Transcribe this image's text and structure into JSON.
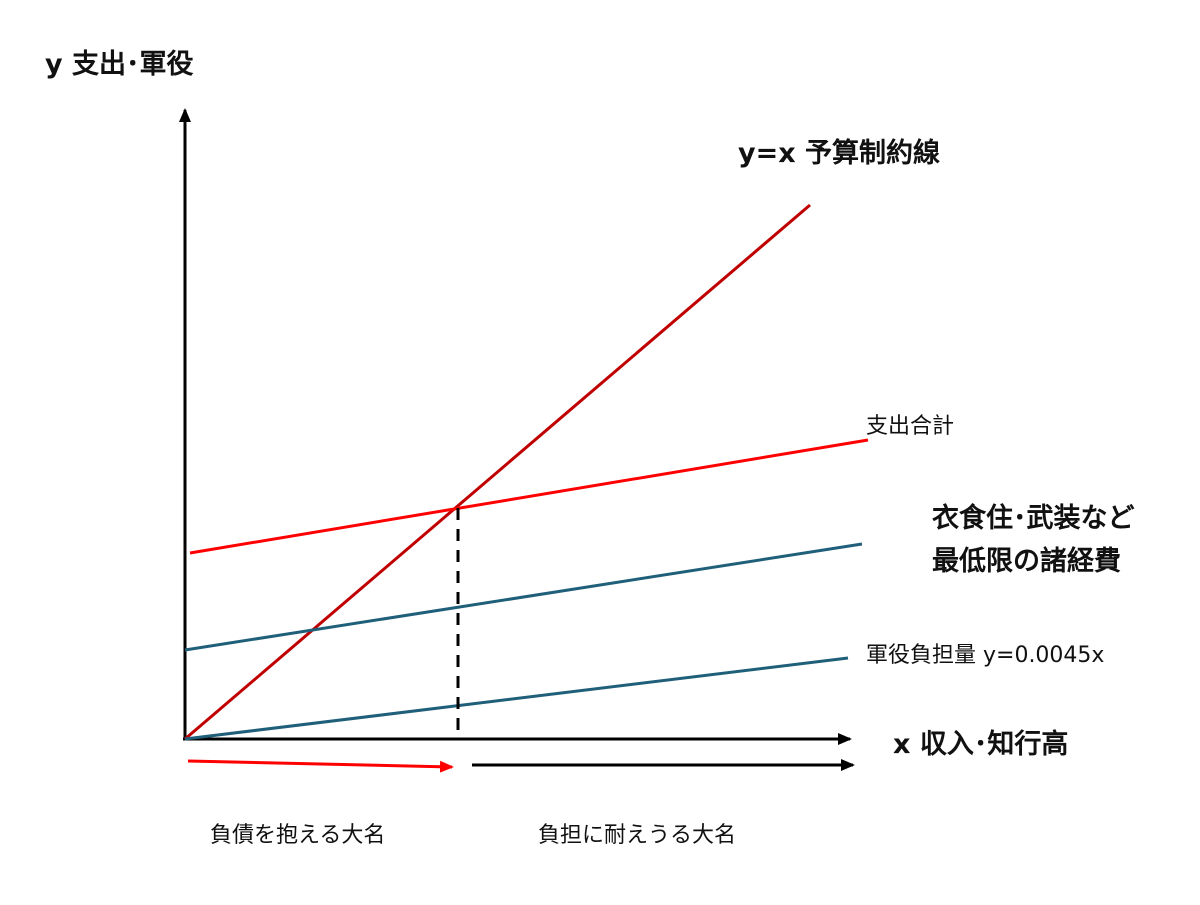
{
  "diagram": {
    "y_axis_label": "y 支出･軍役",
    "x_axis_label": "x 収入･知行高",
    "budget_line_label": "y=x 予算制約線",
    "total_label": "支出合計",
    "expenses_label_line1": "衣食住･武装など",
    "expenses_label_line2": "最低限の諸経費",
    "military_label": "軍役負担量 y=0.0045x",
    "debt_label": "負債を抱える大名",
    "bear_label": "負担に耐えうる大名"
  },
  "colors": {
    "budget_line": "#c00000",
    "total_line": "#ff0000",
    "teal_line": "#1f5f7a",
    "axis": "#000000",
    "debt_arrow": "#ff0000",
    "bear_arrow": "#000000"
  }
}
